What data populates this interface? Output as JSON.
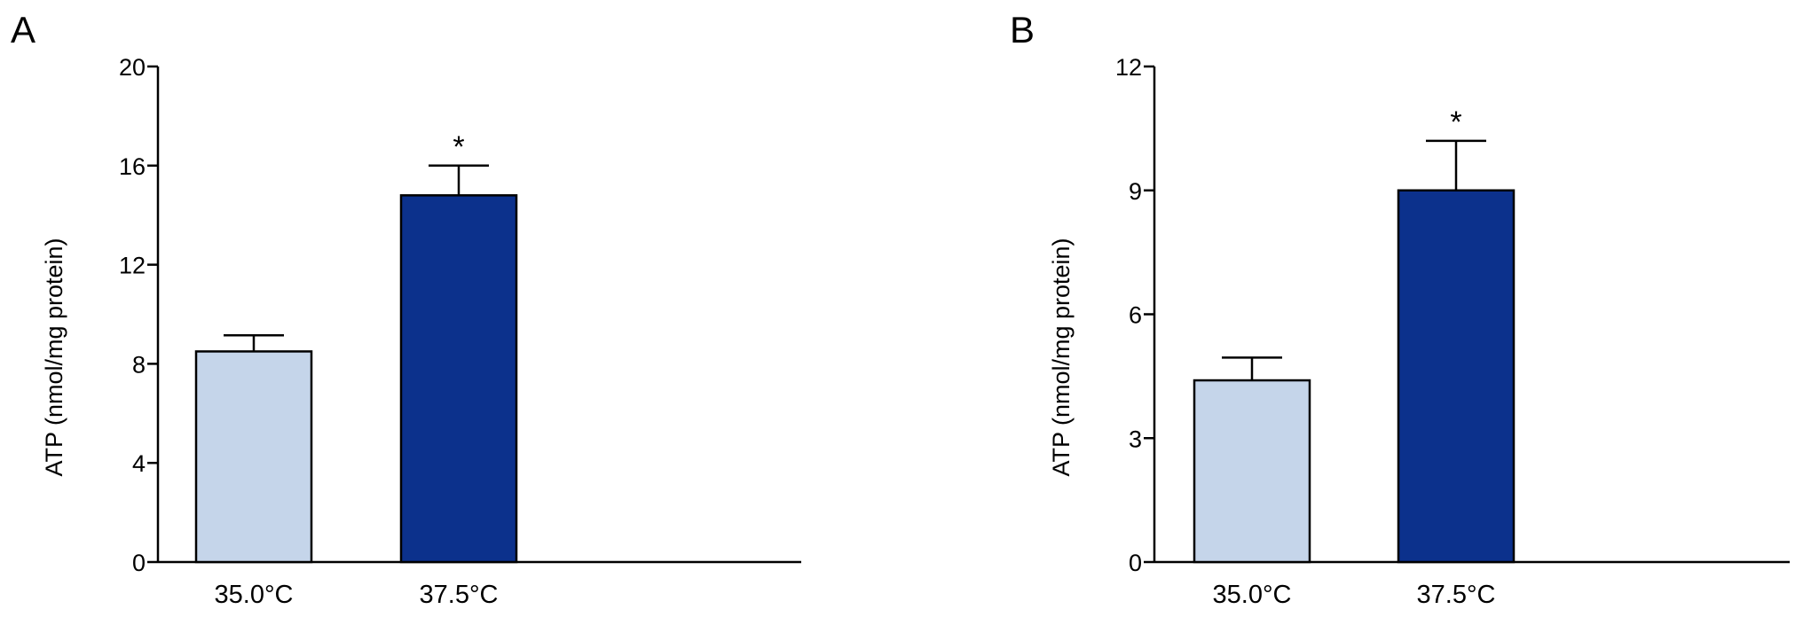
{
  "chart_data": [
    {
      "type": "bar",
      "panel_label": "A",
      "categories": [
        "35.0°C",
        "37.5°C"
      ],
      "values": [
        8.5,
        14.8
      ],
      "error": [
        0.65,
        1.2
      ],
      "significance": [
        "",
        "*"
      ],
      "ylabel": "ATP (nmol/mg protein)",
      "ylim": [
        0,
        20
      ],
      "yticks": [
        0,
        4,
        8,
        12,
        16,
        20
      ],
      "colors": [
        "#c5d5ea",
        "#0c318c"
      ],
      "grid": false
    },
    {
      "type": "bar",
      "panel_label": "B",
      "categories": [
        "35.0°C",
        "37.5°C"
      ],
      "values": [
        4.4,
        9.0
      ],
      "error": [
        0.55,
        1.2
      ],
      "significance": [
        "",
        "*"
      ],
      "ylabel": "ATP (nmol/mg protein)",
      "ylim": [
        0,
        12
      ],
      "yticks": [
        0,
        3,
        6,
        9,
        12
      ],
      "colors": [
        "#c5d5ea",
        "#0c318c"
      ],
      "grid": false
    }
  ]
}
